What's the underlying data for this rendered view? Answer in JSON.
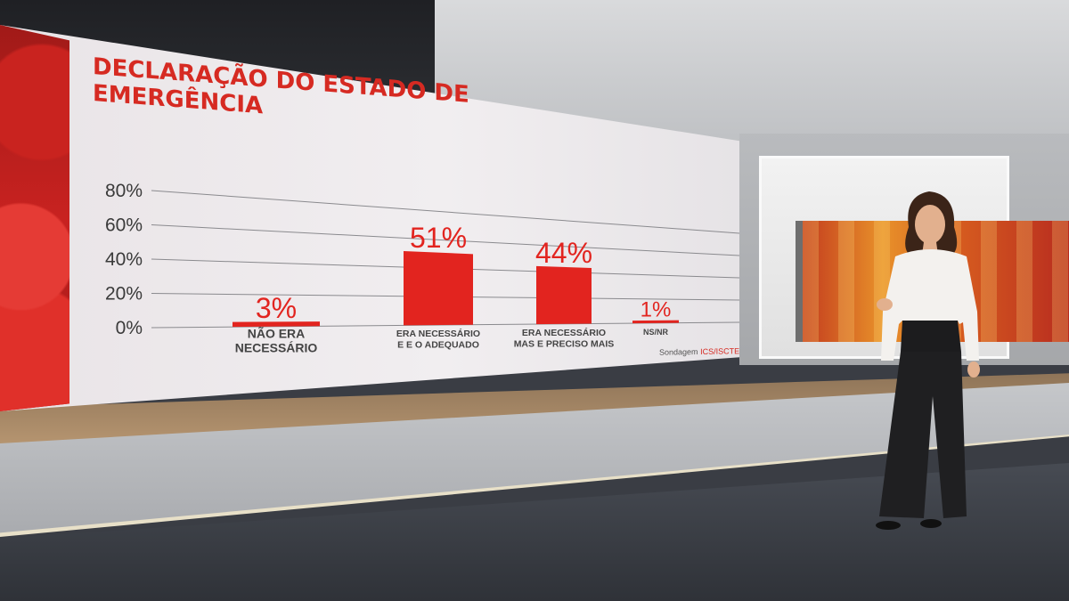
{
  "chart_data": {
    "type": "bar",
    "title": "DECLARAÇÃO DO ESTADO DE EMERGÊNCIA",
    "categories": [
      [
        "NÃO ERA",
        "NECESSÁRIO"
      ],
      [
        "ERA NECESSÁRIO",
        "E E O ADEQUADO"
      ],
      [
        "ERA NECESSÁRIO",
        "MAS E PRECISO MAIS"
      ],
      [
        "NS/NR"
      ]
    ],
    "values": [
      3,
      51,
      44,
      1
    ],
    "value_labels": [
      "3%",
      "51%",
      "44%",
      "1%"
    ],
    "y_ticks": [
      "80%",
      "60%",
      "40%",
      "20%",
      "0%"
    ],
    "ylim": [
      0,
      80
    ],
    "grid": true,
    "bar_color": "#e2241f"
  },
  "source": {
    "prefix": "Sondagem",
    "brand": "ICS/ISCTE"
  }
}
